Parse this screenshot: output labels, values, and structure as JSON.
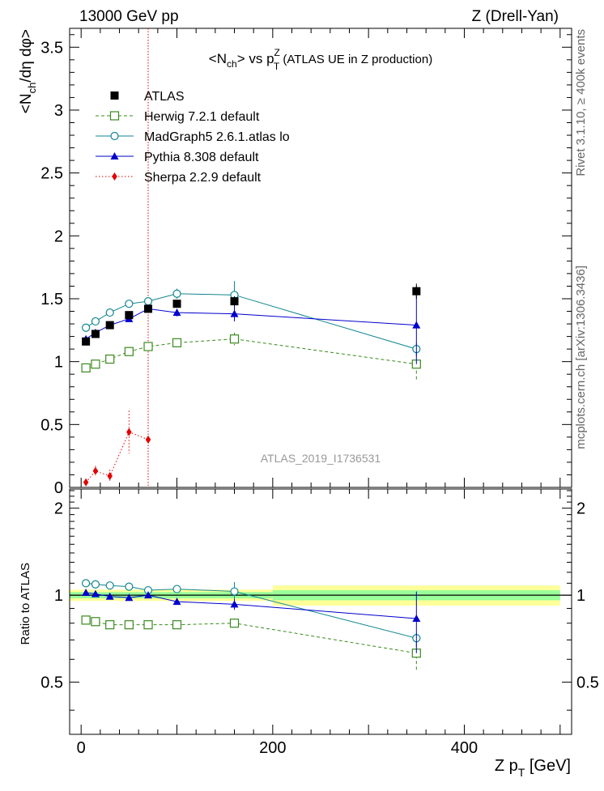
{
  "header": {
    "left": "13000 GeV pp",
    "right": "Z (Drell-Yan)"
  },
  "chart_data": {
    "type": "scatter",
    "title": "<N_ch> vs p_T^Z (ATLAS UE in Z production)",
    "title_parts": {
      "a": "<N",
      "a_sub": "ch",
      "b": "> vs p",
      "b_sup": "Z",
      "b_sub": "T",
      "c": " (ATLAS UE in Z production)"
    },
    "xlabel": "Z p_T [GeV]",
    "xlabel_parts": {
      "main": "Z p",
      "sub": "T",
      "unit": " [GeV]"
    },
    "ylabel_top": "<N_ch/dη dφ>",
    "ylabel_top_parts": {
      "a": "<N",
      "sub": "ch",
      "b": "/dη dφ>"
    },
    "ylabel_bottom": "Ratio to ATLAS",
    "watermark": "ATLAS_2019_I1736531",
    "side_text_top": "Rivet 3.1.10, ≥ 400k events",
    "side_text_bottom": "mcplots.cern.ch [arXiv:1306.3436]",
    "xlim": [
      -12,
      512
    ],
    "top_ylim": [
      0,
      3.65
    ],
    "ratio_ylim": [
      0.33,
      2.33
    ],
    "x_ticks": [
      "0",
      "200",
      "400"
    ],
    "top_y_ticks": [
      "0",
      "0.5",
      "1",
      "1.5",
      "2",
      "2.5",
      "3",
      "3.5"
    ],
    "ratio_y_ticks": [
      "0.5",
      "1",
      "2"
    ],
    "vline_x": 70,
    "data": {
      "name": "ATLAS",
      "x": [
        5,
        15,
        30,
        50,
        70,
        100,
        160,
        350
      ],
      "y": [
        1.16,
        1.22,
        1.29,
        1.37,
        1.42,
        1.46,
        1.48,
        1.56
      ],
      "err": [
        0.02,
        0.02,
        0.02,
        0.02,
        0.03,
        0.03,
        0.04,
        0.06
      ]
    },
    "ratio_bands": [
      {
        "x0": -12,
        "x1": 200,
        "inner": [
          0.975,
          1.025
        ],
        "outer": [
          0.955,
          1.045
        ]
      },
      {
        "x0": 200,
        "x1": 500,
        "inner": [
          0.96,
          1.04
        ],
        "outer": [
          0.92,
          1.08
        ]
      }
    ],
    "series": [
      {
        "name": "Herwig 7.2.1 default",
        "color": "#3a8a1e",
        "marker": "open-square",
        "dash": "4,3",
        "x": [
          5,
          15,
          30,
          50,
          70,
          100,
          160,
          350
        ],
        "y": [
          0.95,
          0.98,
          1.02,
          1.08,
          1.12,
          1.15,
          1.18,
          0.98
        ],
        "err": [
          0.01,
          0.01,
          0.01,
          0.01,
          0.01,
          0.02,
          0.05,
          0.13
        ],
        "ratio": [
          0.82,
          0.81,
          0.79,
          0.79,
          0.79,
          0.79,
          0.8,
          0.63
        ],
        "ratio_err": [
          0.01,
          0.01,
          0.01,
          0.01,
          0.01,
          0.02,
          0.03,
          0.08
        ]
      },
      {
        "name": "MadGraph5 2.6.1.atlas lo",
        "color": "#11868f",
        "marker": "open-circle",
        "dash": "",
        "x": [
          5,
          15,
          30,
          50,
          70,
          100,
          160,
          350
        ],
        "y": [
          1.27,
          1.32,
          1.39,
          1.46,
          1.48,
          1.54,
          1.53,
          1.1
        ],
        "err": [
          0.01,
          0.01,
          0.01,
          0.01,
          0.02,
          0.04,
          0.11,
          0.05
        ],
        "ratio": [
          1.1,
          1.09,
          1.08,
          1.07,
          1.04,
          1.05,
          1.03,
          0.71
        ],
        "ratio_err": [
          0.01,
          0.01,
          0.01,
          0.01,
          0.01,
          0.03,
          0.08,
          0.03
        ]
      },
      {
        "name": "Pythia 8.308 default",
        "color": "#0000cc",
        "marker": "filled-triangle",
        "dash": "",
        "x": [
          5,
          15,
          30,
          50,
          70,
          100,
          160,
          350
        ],
        "y": [
          1.18,
          1.23,
          1.29,
          1.34,
          1.42,
          1.39,
          1.38,
          1.29
        ],
        "err": [
          0.01,
          0.01,
          0.01,
          0.01,
          0.01,
          0.03,
          0.06,
          0.31
        ],
        "ratio": [
          1.02,
          1.01,
          0.99,
          0.98,
          1.0,
          0.95,
          0.93,
          0.83
        ],
        "ratio_err": [
          0.01,
          0.01,
          0.01,
          0.01,
          0.01,
          0.02,
          0.04,
          0.2
        ]
      },
      {
        "name": "Sherpa 2.2.9 default",
        "color": "#e00000",
        "marker": "filled-diamond",
        "dash": "1.5,2.5",
        "x": [
          5,
          15,
          30,
          50,
          70
        ],
        "y": [
          0.04,
          0.13,
          0.09,
          0.44,
          0.38
        ],
        "err": [
          0.02,
          0.04,
          0.05,
          0.17,
          0.03
        ],
        "ratio": [],
        "ratio_err": []
      }
    ]
  }
}
